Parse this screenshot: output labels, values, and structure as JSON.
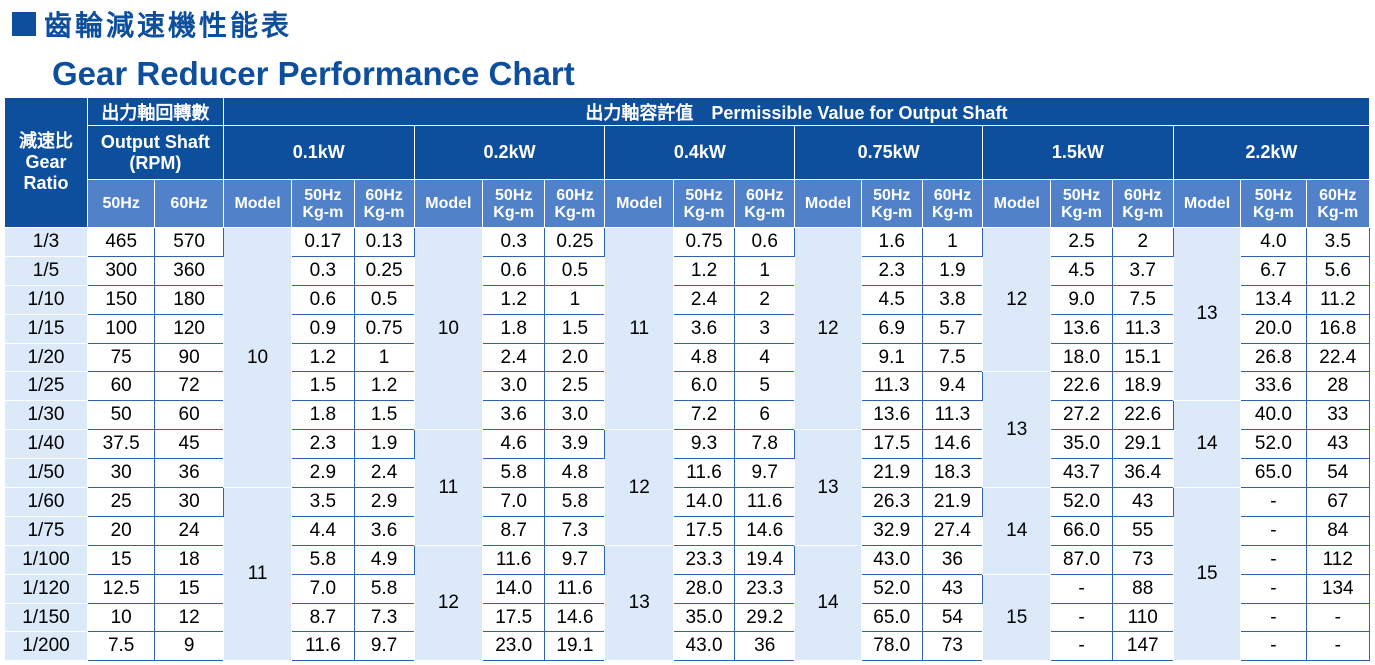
{
  "title_zh": "齒輪減速機性能表",
  "title_en": "Gear Reducer Performance Chart",
  "header": {
    "ratio_label": [
      "減速比",
      "Gear",
      "Ratio"
    ],
    "rpm_zh": "出力軸回轉數",
    "rpm_en": [
      "Output Shaft",
      "(RPM)"
    ],
    "permissible": "出力軸容許值　Permissible Value for Output Shaft",
    "powers": [
      "0.1kW",
      "0.2kW",
      "0.4kW",
      "0.75kW",
      "1.5kW",
      "2.2kW"
    ],
    "hz50": "50Hz",
    "hz60": "60Hz",
    "model": "Model",
    "val50": [
      "50Hz",
      "Kg-m"
    ],
    "val60": [
      "60Hz",
      "Kg-m"
    ]
  },
  "ratios": [
    "1/3",
    "1/5",
    "1/10",
    "1/15",
    "1/20",
    "1/25",
    "1/30",
    "1/40",
    "1/50",
    "1/60",
    "1/75",
    "1/100",
    "1/120",
    "1/150",
    "1/200"
  ],
  "rpm50": [
    "465",
    "300",
    "150",
    "100",
    "75",
    "60",
    "50",
    "37.5",
    "30",
    "25",
    "20",
    "15",
    "12.5",
    "10",
    "7.5"
  ],
  "rpm60": [
    "570",
    "360",
    "180",
    "120",
    "90",
    "72",
    "60",
    "45",
    "36",
    "30",
    "24",
    "18",
    "15",
    "12",
    "9"
  ],
  "groups": [
    {
      "power": "0.1kW",
      "models": [
        {
          "label": "10",
          "rows": 9
        },
        {
          "label": "11",
          "rows": 6
        }
      ],
      "v50": [
        "0.17",
        "0.3",
        "0.6",
        "0.9",
        "1.2",
        "1.5",
        "1.8",
        "2.3",
        "2.9",
        "3.5",
        "4.4",
        "5.8",
        "7.0",
        "8.7",
        "11.6"
      ],
      "v60": [
        "0.13",
        "0.25",
        "0.5",
        "0.75",
        "1",
        "1.2",
        "1.5",
        "1.9",
        "2.4",
        "2.9",
        "3.6",
        "4.9",
        "5.8",
        "7.3",
        "9.7"
      ]
    },
    {
      "power": "0.2kW",
      "models": [
        {
          "label": "10",
          "rows": 7
        },
        {
          "label": "11",
          "rows": 4
        },
        {
          "label": "12",
          "rows": 4
        }
      ],
      "v50": [
        "0.3",
        "0.6",
        "1.2",
        "1.8",
        "2.4",
        "3.0",
        "3.6",
        "4.6",
        "5.8",
        "7.0",
        "8.7",
        "11.6",
        "14.0",
        "17.5",
        "23.0"
      ],
      "v60": [
        "0.25",
        "0.5",
        "1",
        "1.5",
        "2.0",
        "2.5",
        "3.0",
        "3.9",
        "4.8",
        "5.8",
        "7.3",
        "9.7",
        "11.6",
        "14.6",
        "19.1"
      ]
    },
    {
      "power": "0.4kW",
      "models": [
        {
          "label": "11",
          "rows": 7
        },
        {
          "label": "12",
          "rows": 4
        },
        {
          "label": "13",
          "rows": 4
        }
      ],
      "v50": [
        "0.75",
        "1.2",
        "2.4",
        "3.6",
        "4.8",
        "6.0",
        "7.2",
        "9.3",
        "11.6",
        "14.0",
        "17.5",
        "23.3",
        "28.0",
        "35.0",
        "43.0"
      ],
      "v60": [
        "0.6",
        "1",
        "2",
        "3",
        "4",
        "5",
        "6",
        "7.8",
        "9.7",
        "11.6",
        "14.6",
        "19.4",
        "23.3",
        "29.2",
        "36"
      ]
    },
    {
      "power": "0.75kW",
      "models": [
        {
          "label": "12",
          "rows": 7
        },
        {
          "label": "13",
          "rows": 4
        },
        {
          "label": "14",
          "rows": 4
        }
      ],
      "v50": [
        "1.6",
        "2.3",
        "4.5",
        "6.9",
        "9.1",
        "11.3",
        "13.6",
        "17.5",
        "21.9",
        "26.3",
        "32.9",
        "43.0",
        "52.0",
        "65.0",
        "78.0"
      ],
      "v60": [
        "1",
        "1.9",
        "3.8",
        "5.7",
        "7.5",
        "9.4",
        "11.3",
        "14.6",
        "18.3",
        "21.9",
        "27.4",
        "36",
        "43",
        "54",
        "73"
      ]
    },
    {
      "power": "1.5kW",
      "models": [
        {
          "label": "12",
          "rows": 5
        },
        {
          "label": "13",
          "rows": 4
        },
        {
          "label": "14",
          "rows": 3
        },
        {
          "label": "15",
          "rows": 3
        }
      ],
      "v50": [
        "2.5",
        "4.5",
        "9.0",
        "13.6",
        "18.0",
        "22.6",
        "27.2",
        "35.0",
        "43.7",
        "52.0",
        "66.0",
        "87.0",
        "-",
        "-",
        "-"
      ],
      "v60": [
        "2",
        "3.7",
        "7.5",
        "11.3",
        "15.1",
        "18.9",
        "22.6",
        "29.1",
        "36.4",
        "43",
        "55",
        "73",
        "88",
        "110",
        "147"
      ]
    },
    {
      "power": "2.2kW",
      "models": [
        {
          "label": "13",
          "rows": 6
        },
        {
          "label": "14",
          "rows": 3
        },
        {
          "label": "15",
          "rows": 6
        }
      ],
      "v50": [
        "4.0",
        "6.7",
        "13.4",
        "20.0",
        "26.8",
        "33.6",
        "40.0",
        "52.0",
        "65.0",
        "-",
        "-",
        "-",
        "-",
        "-",
        "-"
      ],
      "v60": [
        "3.5",
        "5.6",
        "11.2",
        "16.8",
        "22.4",
        "28",
        "33",
        "43",
        "54",
        "67",
        "84",
        "112",
        "134",
        "-",
        "-"
      ]
    }
  ]
}
